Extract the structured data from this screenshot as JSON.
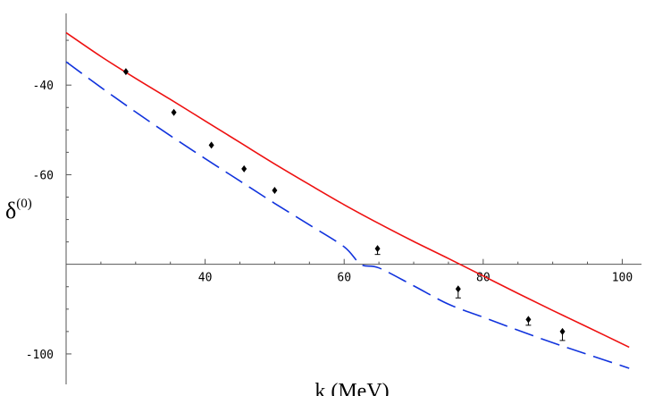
{
  "chart_data": {
    "type": "scatter",
    "title": "",
    "xlabel": "k (MeV)",
    "ylabel": "δ",
    "ylabel_superscript": "(0)",
    "xlim": [
      20,
      102
    ],
    "ylim": [
      -106,
      -24
    ],
    "axes_cross_at": {
      "x": 20,
      "y": -80
    },
    "grid": false,
    "x_ticks": [
      40,
      60,
      80,
      100
    ],
    "y_ticks": [
      -40,
      -60,
      -100
    ],
    "series": [
      {
        "kind": "curve",
        "style": "solid",
        "color": "#ee1111",
        "x": [
          20,
          25,
          30,
          35,
          40,
          45,
          50,
          55,
          60,
          65,
          70,
          75,
          80,
          85,
          90,
          95,
          101
        ],
        "y": [
          -28.3,
          -33.6,
          -38.5,
          -43.2,
          -48.0,
          -52.8,
          -57.6,
          -62.2,
          -66.7,
          -70.9,
          -74.9,
          -78.7,
          -82.6,
          -86.5,
          -90.3,
          -94.0,
          -98.5
        ]
      },
      {
        "kind": "curve",
        "style": "dashed",
        "color": "#1133dd",
        "x": [
          20,
          25,
          30,
          35,
          40,
          45,
          50,
          55,
          60,
          62.4,
          65,
          70,
          75,
          80,
          85,
          90,
          95,
          101
        ],
        "y": [
          -34.8,
          -40.5,
          -46.0,
          -51.3,
          -56.4,
          -61.4,
          -66.4,
          -71.2,
          -76.1,
          -80.0,
          -80.8,
          -84.8,
          -88.9,
          -91.8,
          -94.7,
          -97.5,
          -100.1,
          -103.2
        ]
      },
      {
        "kind": "points",
        "marker": "diamond",
        "color": "#000000",
        "x": [
          28.6,
          35.5,
          40.9,
          45.6,
          50.0,
          64.8,
          76.4,
          86.5,
          91.4
        ],
        "y": [
          -37.0,
          -46.1,
          -53.4,
          -58.7,
          -63.5,
          -76.5,
          -85.5,
          -92.3,
          -95.0
        ],
        "err_y_low": [
          null,
          null,
          null,
          null,
          null,
          -77.8,
          -87.5,
          -93.6,
          -97.0
        ]
      }
    ]
  }
}
